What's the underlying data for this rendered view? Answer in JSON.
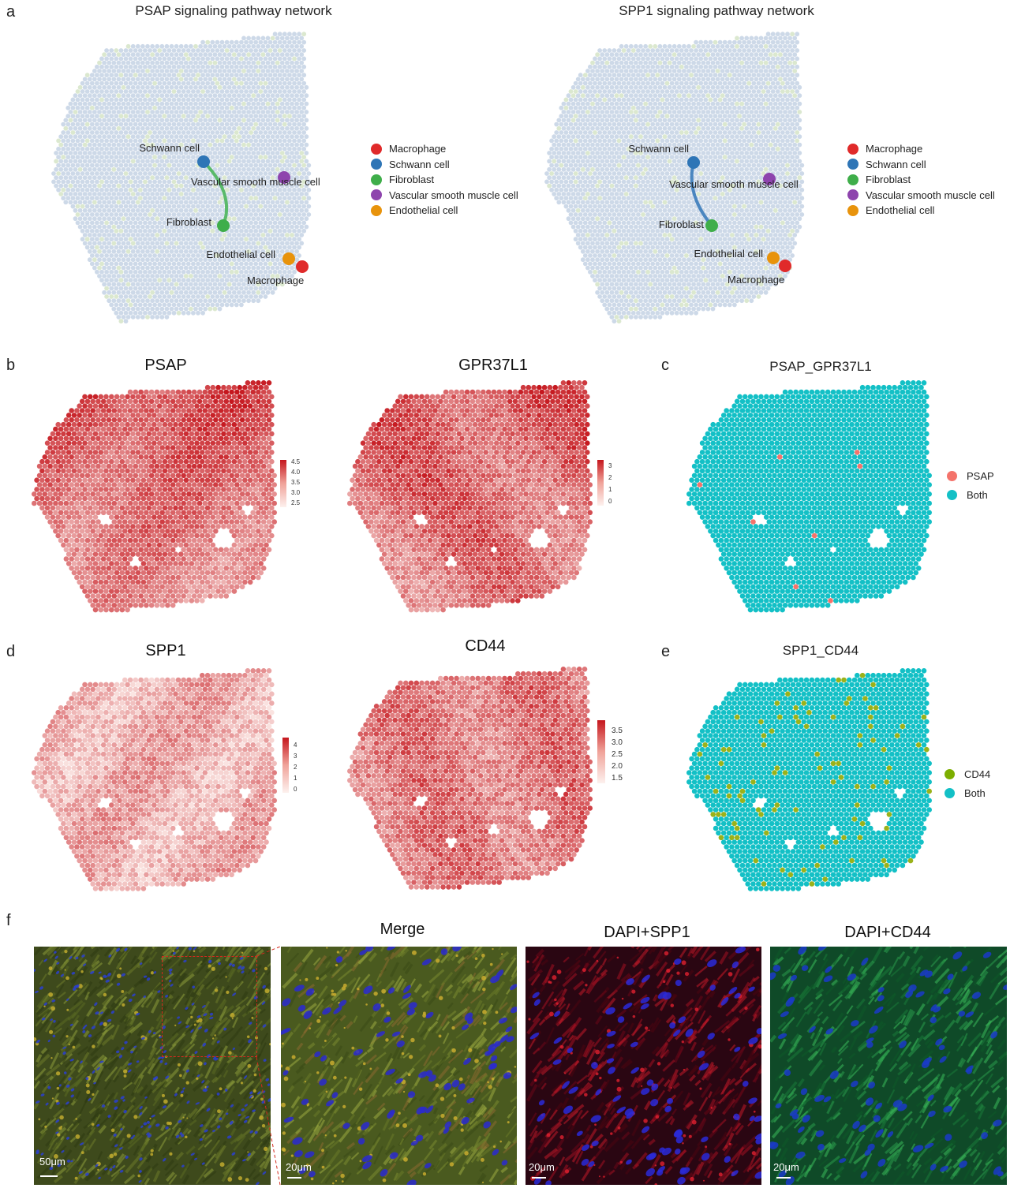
{
  "panel_letters": {
    "a": "a",
    "b": "b",
    "c": "c",
    "d": "d",
    "e": "e",
    "f": "f"
  },
  "panel_a": {
    "left": {
      "title": "PSAP signaling pathway network",
      "node_labels": {
        "schwann": "Schwann cell",
        "vsmc": "Vascular smooth muscle cell",
        "fibroblast": "Fibroblast",
        "endothelial": "Endothelial cell",
        "macrophage": "Macrophage"
      },
      "edge_color": "#5aba6a"
    },
    "right": {
      "title": "SPP1 signaling pathway network",
      "node_labels": {
        "schwann": "Schwann cell",
        "vsmc": "Vascular smooth muscle cell",
        "fibroblast": "Fibroblast",
        "endothelial": "Endothelial cell",
        "macrophage": "Macrophage"
      },
      "edge_color": "#4a86c0"
    },
    "legend": [
      {
        "label": "Macrophage",
        "color": "#e02a2a"
      },
      {
        "label": "Schwann cell",
        "color": "#2e75b6"
      },
      {
        "label": "Fibroblast",
        "color": "#3fae4a"
      },
      {
        "label": "Vascular smooth muscle cell",
        "color": "#8e44ad"
      },
      {
        "label": "Endothelial cell",
        "color": "#e8930c"
      }
    ],
    "spot_color": "#cdd9e8"
  },
  "panel_b": {
    "psap": {
      "title": "PSAP",
      "colorbar_ticks": [
        "4.5",
        "4.0",
        "3.5",
        "3.0",
        "2.5"
      ]
    },
    "gpr": {
      "title": "GPR37L1",
      "colorbar_ticks": [
        "3",
        "2",
        "1",
        "0"
      ]
    }
  },
  "panel_c": {
    "title": "PSAP_GPR37L1",
    "legend": [
      {
        "label": "PSAP",
        "color": "#f4736b"
      },
      {
        "label": "Both",
        "color": "#13c0c6"
      }
    ]
  },
  "panel_d": {
    "spp1": {
      "title": "SPP1",
      "colorbar_ticks": [
        "4",
        "3",
        "2",
        "1",
        "0"
      ]
    },
    "cd44": {
      "title": "CD44",
      "colorbar_ticks": [
        "3.5",
        "3.0",
        "2.5",
        "2.0",
        "1.5"
      ]
    }
  },
  "panel_e": {
    "title": "SPP1_CD44",
    "legend": [
      {
        "label": "CD44",
        "color": "#7cae00"
      },
      {
        "label": "Both",
        "color": "#13c0c6"
      }
    ]
  },
  "panel_f": {
    "titles": {
      "merge": "Merge",
      "spp1": "DAPI+SPP1",
      "cd44": "DAPI+CD44"
    },
    "scale_labels": {
      "overview": "50μm",
      "merge": "20μm",
      "spp1": "20μm",
      "cd44": "20μm"
    }
  },
  "colors": {
    "red_high": "#c5161d",
    "red_low": "#fbe7e4",
    "cyan": "#13c0c6",
    "olive": "#9ab21a"
  }
}
